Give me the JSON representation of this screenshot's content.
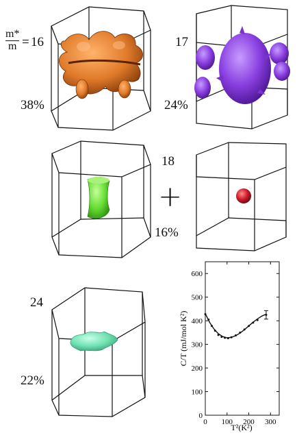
{
  "panels": [
    {
      "id": "orange",
      "mass": "16",
      "percent": "38%",
      "color": "#e07a2a"
    },
    {
      "id": "purple",
      "mass": "17",
      "percent": "24%",
      "color": "#8a3fe0"
    },
    {
      "id": "green",
      "mass": "18",
      "percent": "16%",
      "color": "#66dd33"
    },
    {
      "id": "red",
      "color": "#cc1a2a"
    },
    {
      "id": "teal",
      "mass": "24",
      "percent": "22%",
      "color": "#6fe0b0"
    }
  ],
  "mass_ratio": {
    "numerator": "m*",
    "denominator": "m",
    "equals": "="
  },
  "plus_sign": "+",
  "chart_data": {
    "type": "line",
    "xlabel": "T²(K²)",
    "ylabel": "C/T (mJ/mol K²)",
    "xlim": [
      0,
      340
    ],
    "ylim": [
      0,
      650
    ],
    "x_ticks": [
      0,
      100,
      200,
      300
    ],
    "y_ticks": [
      0,
      100,
      200,
      300,
      400,
      500,
      600
    ],
    "grid": false,
    "series": [
      {
        "kind": "curve",
        "x": [
          0,
          20,
          40,
          60,
          80,
          100,
          120,
          140,
          160,
          180,
          200,
          220,
          240,
          260,
          280
        ],
        "y": [
          430,
          393,
          365,
          345,
          333,
          328,
          330,
          337,
          348,
          362,
          378,
          394,
          408,
          420,
          428
        ]
      },
      {
        "kind": "points",
        "x": [
          0,
          15,
          30,
          45,
          60,
          75,
          90,
          105,
          120,
          140,
          160,
          180,
          200,
          220,
          240,
          280
        ],
        "y": [
          428,
          405,
          378,
          358,
          340,
          332,
          328,
          326,
          330,
          338,
          350,
          363,
          378,
          392,
          403,
          425
        ]
      }
    ],
    "error_bar": {
      "x": 280,
      "y": 425,
      "err": 18
    }
  }
}
